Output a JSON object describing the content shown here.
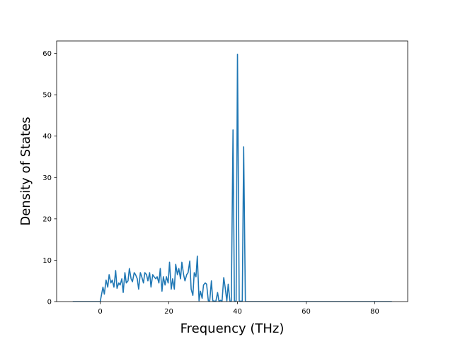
{
  "chart_data": {
    "type": "line",
    "title": "",
    "xlabel": "Frequency (THz)",
    "ylabel": "Density of States",
    "xlim": [
      -12.7,
      89.6
    ],
    "ylim": [
      0,
      63
    ],
    "xticks": [
      0,
      20,
      40,
      60,
      80
    ],
    "yticks": [
      0,
      10,
      20,
      30,
      40,
      50,
      60
    ],
    "grid": false,
    "line_color": "#1f77b4",
    "series": [
      {
        "x": [
          -8.0,
          0.0,
          0.8,
          1.2,
          1.7,
          2.2,
          2.6,
          3.1,
          3.5,
          4.0,
          4.5,
          4.9,
          5.4,
          5.8,
          6.3,
          6.7,
          7.2,
          7.6,
          8.1,
          8.5,
          9.0,
          9.4,
          9.9,
          10.3,
          10.8,
          11.2,
          11.7,
          12.1,
          12.6,
          13.0,
          13.5,
          13.9,
          14.4,
          14.8,
          15.3,
          15.7,
          16.2,
          16.6,
          17.1,
          17.5,
          18.0,
          18.4,
          18.9,
          19.3,
          19.8,
          20.2,
          20.7,
          21.1,
          21.6,
          22.0,
          22.5,
          22.9,
          23.4,
          23.8,
          24.3,
          24.7,
          25.2,
          25.6,
          26.1,
          26.5,
          27.0,
          27.4,
          27.9,
          28.3,
          28.8,
          29.2,
          29.7,
          30.1,
          30.6,
          31.0,
          31.5,
          31.9,
          32.4,
          32.8,
          33.3,
          33.7,
          34.2,
          34.6,
          35.1,
          35.5,
          36.0,
          36.4,
          36.9,
          37.3,
          37.8,
          38.2,
          38.7,
          39.1,
          39.6,
          40.0,
          40.5,
          40.9,
          41.4,
          41.8,
          42.3,
          42.7,
          43.2,
          43.6,
          44.1,
          44.5,
          45.0,
          45.4,
          45.9,
          46.3,
          46.8,
          47.2,
          47.7,
          48.1,
          48.6,
          49.0,
          49.5,
          49.9,
          50.4,
          50.8,
          51.3,
          51.7,
          52.2,
          52.6,
          53.1,
          53.5,
          54.0,
          54.4,
          54.9,
          55.3,
          55.8,
          56.2,
          56.7,
          57.1,
          57.6,
          58.0,
          58.5,
          85.0
        ],
        "y": [
          0,
          0,
          3.5,
          1.8,
          5.2,
          3.5,
          6.5,
          4.5,
          5.2,
          3.5,
          7.5,
          3.2,
          4.5,
          4.0,
          5.5,
          2.2,
          7.0,
          4.5,
          5.0,
          8.0,
          5.5,
          4.8,
          7.0,
          6.5,
          5.5,
          3.0,
          7.0,
          6.0,
          4.5,
          7.0,
          6.5,
          5.0,
          7.0,
          3.5,
          6.5,
          6.0,
          5.5,
          6.0,
          4.5,
          8.0,
          2.5,
          6.0,
          4.0,
          6.0,
          4.5,
          9.5,
          3.0,
          5.5,
          3.0,
          9.0,
          6.5,
          8.0,
          5.5,
          9.5,
          6.5,
          5.0,
          6.5,
          7.0,
          9.8,
          3.0,
          1.5,
          7.0,
          6.0,
          11.0,
          0.2,
          2.5,
          0.8,
          4.0,
          4.5,
          4.2,
          0.2,
          0.1,
          5.0,
          0.2,
          0.1,
          0.1,
          2.2,
          0.1,
          0.3,
          0.1,
          5.8,
          3.5,
          0.1,
          4.2,
          0.1,
          0.1,
          41.5,
          0.1,
          0.1,
          59.8,
          0.1,
          0.1,
          0.1,
          37.4,
          0.0,
          0.0,
          0.0,
          0.0,
          0.0,
          0.0,
          0.0,
          0.0,
          0.0,
          0.0,
          0.0,
          0.0,
          0.0,
          0.0,
          0.0,
          0.0,
          0.0,
          0.0,
          0.0,
          0.0,
          0.0,
          0.0,
          0.0,
          0.0,
          0.0,
          0.0,
          0.0,
          0.0,
          0.0,
          0.0,
          0.0,
          0.0,
          0.0,
          0.0,
          0.0,
          0.0,
          0.0,
          0.0
        ]
      }
    ]
  }
}
